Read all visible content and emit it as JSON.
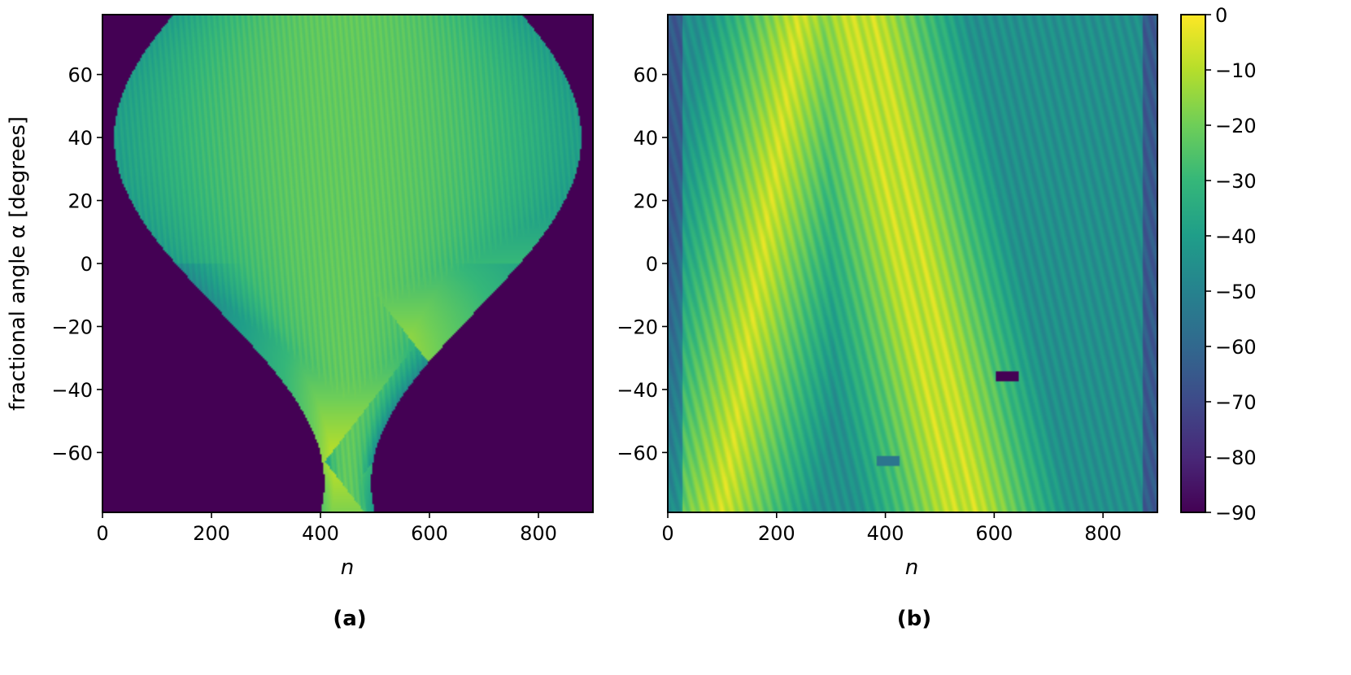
{
  "chart_data": [
    {
      "type": "heatmap",
      "panel_label": "(a)",
      "xlabel": "n",
      "ylabel": "fractional angle α [degrees]",
      "xlim": [
        0,
        900
      ],
      "ylim": [
        -79,
        79
      ],
      "xticks": [
        0,
        200,
        400,
        600,
        800
      ],
      "xtick_labels": [
        "0",
        "200",
        "400",
        "600",
        "800"
      ],
      "yticks": [
        60,
        40,
        20,
        0,
        -20,
        -40,
        -60
      ],
      "ytick_labels": [
        "60",
        "40",
        "20",
        "0",
        "−20",
        "−40",
        "−60"
      ],
      "features": {
        "focus_points": [
          {
            "n": 405,
            "alpha": -63
          },
          {
            "n": 622,
            "alpha": -36
          }
        ],
        "envelope_center_n": 450,
        "envelope_half_width_max": 430,
        "background_level_db": -90
      }
    },
    {
      "type": "heatmap",
      "panel_label": "(b)",
      "xlabel": "n",
      "ylabel": "",
      "xlim": [
        0,
        900
      ],
      "ylim": [
        -79,
        79
      ],
      "xticks": [
        0,
        200,
        400,
        600,
        800
      ],
      "xtick_labels": [
        "0",
        "200",
        "400",
        "600",
        "800"
      ],
      "yticks": [
        60,
        40,
        20,
        0,
        -20,
        -40,
        -60
      ],
      "ytick_labels": [
        "60",
        "40",
        "20",
        "0",
        "−20",
        "−40",
        "−60"
      ],
      "features": {
        "bright_bands_n": [
          170,
          430,
          470
        ],
        "notches": [
          {
            "n": 625,
            "alpha": -36,
            "level_db": -90
          },
          {
            "n": 405,
            "alpha": -63,
            "level_db": -55
          }
        ],
        "background_level_db": -45
      }
    }
  ],
  "colorbar": {
    "colormap": "viridis",
    "min": -90,
    "max": 0,
    "ticks": [
      0,
      -10,
      -20,
      -30,
      -40,
      -50,
      -60,
      -70,
      -80,
      -90
    ],
    "tick_labels": [
      "0",
      "−10",
      "−20",
      "−30",
      "−40",
      "−50",
      "−60",
      "−70",
      "−80",
      "−90"
    ]
  }
}
